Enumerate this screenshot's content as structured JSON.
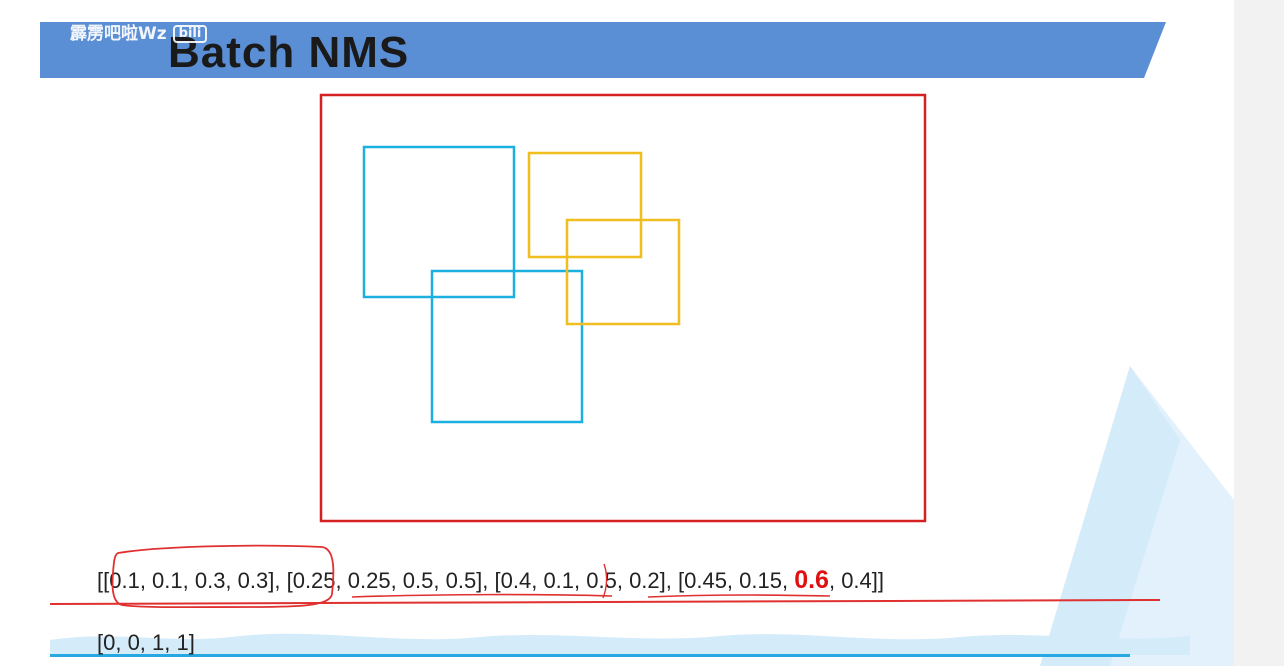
{
  "title": "Batch NMS",
  "watermark": {
    "author": "霹雳吧啦Wz",
    "logo_text": "bili"
  },
  "colors": {
    "banner": "#5b8fd5",
    "image_frame": "#d42020",
    "box_blue": "#1ab0e0",
    "box_yellow": "#f0be1e",
    "annotation": "#e03030",
    "highlight": "#e01010"
  },
  "boxes": {
    "line1": {
      "open": "[",
      "items": [
        {
          "text": "[0.1, 0.1, 0.3, 0.3]",
          "circled": true
        },
        {
          "text": "[0.25, 0.25, 0.5, 0.5]",
          "underlined": true
        },
        {
          "text": "[0.4, 0.1, 0.5, 0.2]",
          "underlined": true
        },
        {
          "prefix": "[0.45, 0.15, ",
          "highlight": "0.6",
          "suffix": ", 0.4]"
        }
      ],
      "close": "]",
      "separator": ",  "
    },
    "line2": {
      "text": "[0,  0,  1,  1]"
    }
  }
}
